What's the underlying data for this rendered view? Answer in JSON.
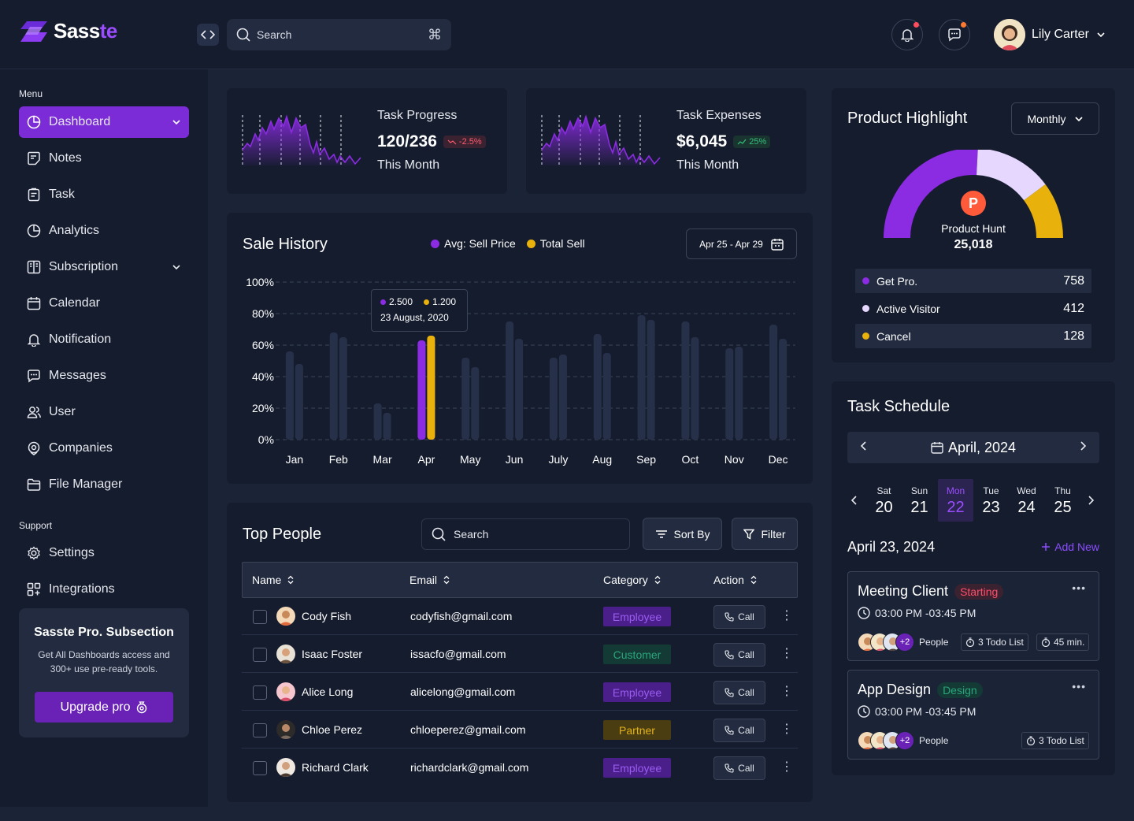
{
  "brand": {
    "name_main": "Sass",
    "name_accent": "te"
  },
  "header": {
    "search_placeholder": "Search",
    "shortcut": "⌘",
    "user_name": "Lily Carter"
  },
  "sidebar": {
    "menu_label": "Menu",
    "support_label": "Support",
    "items": [
      {
        "label": "Dashboard"
      },
      {
        "label": "Notes"
      },
      {
        "label": "Task"
      },
      {
        "label": "Analytics"
      },
      {
        "label": "Subscription"
      },
      {
        "label": "Calendar"
      },
      {
        "label": "Notification"
      },
      {
        "label": "Messages"
      },
      {
        "label": "User"
      },
      {
        "label": "Companies"
      },
      {
        "label": "File Manager"
      }
    ],
    "support_items": [
      {
        "label": "Settings"
      },
      {
        "label": "Integrations"
      }
    ],
    "promo": {
      "title": "Sasste Pro. Subsection",
      "description": "Get All Dashboards access and 300+ use pre-ready tools.",
      "button": "Upgrade pro"
    }
  },
  "stats": [
    {
      "title": "Task Progress",
      "value": "120/236",
      "change": "-2.5%",
      "period": "This Month"
    },
    {
      "title": "Task Expenses",
      "value": "$6,045",
      "change": "25%",
      "period": "This Month"
    }
  ],
  "sale_history": {
    "title": "Sale History",
    "legend": [
      "Avg: Sell Price",
      "Total Sell"
    ],
    "date_range": "Apr 25 - Apr 29",
    "tooltip": {
      "v1": "2.500",
      "v2": "1.200",
      "date": "23 August, 2020"
    }
  },
  "chart_data": {
    "type": "bar",
    "title": "Sale History",
    "categories": [
      "Jan",
      "Feb",
      "Mar",
      "Apr",
      "May",
      "Jun",
      "July",
      "Aug",
      "Sep",
      "Oct",
      "Nov",
      "Dec"
    ],
    "ylabels": [
      "100%",
      "80%",
      "60%",
      "40%",
      "20%",
      "0%"
    ],
    "ylim": [
      0,
      100
    ],
    "series": [
      {
        "name": "Avg: Sell Price",
        "values": [
          56,
          68,
          23,
          63,
          52,
          75,
          52,
          67,
          79,
          75,
          58,
          73
        ]
      },
      {
        "name": "Total Sell",
        "values": [
          48,
          65,
          17,
          66,
          46,
          64,
          54,
          55,
          76,
          65,
          59,
          64
        ]
      }
    ],
    "highlight_index": 3,
    "colors": {
      "highlight1": "#8b2be2",
      "highlight2": "#e8b10c",
      "bar": "#263048"
    }
  },
  "top_people": {
    "title": "Top People",
    "search_placeholder": "Search",
    "sort_label": "Sort By",
    "filter_label": "Filter",
    "columns": [
      "Name",
      "Email",
      "Category",
      "Action"
    ],
    "call_label": "Call",
    "rows": [
      {
        "name": "Cody Fish",
        "email": "codyfish@gmail.com",
        "category": "Employee"
      },
      {
        "name": "Isaac Foster",
        "email": "issacfo@gmail.com",
        "category": "Customer"
      },
      {
        "name": "Alice Long",
        "email": "alicelong@gmail.com",
        "category": "Employee"
      },
      {
        "name": "Chloe Perez",
        "email": "chloeperez@gmail.com",
        "category": "Partner"
      },
      {
        "name": "Richard Clark",
        "email": "richardclark@gmail.com",
        "category": "Employee"
      }
    ]
  },
  "product_highlight": {
    "title": "Product Highlight",
    "period": "Monthly",
    "product_logo": "P",
    "product_name": "Product Hunt",
    "product_value": "25,018",
    "gauge_segments": [
      {
        "name": "Get Pro.",
        "value": 758,
        "color": "#8b2be2"
      },
      {
        "name": "Active Visitor",
        "value": 412,
        "color": "#e6d7ff"
      },
      {
        "name": "Cancel",
        "value": 128,
        "color": "#e8b10c"
      }
    ],
    "stats": [
      {
        "label": "Get Pro.",
        "value": "758"
      },
      {
        "label": "Active Visitor",
        "value": "412"
      },
      {
        "label": "Cancel",
        "value": "128"
      }
    ]
  },
  "task_schedule": {
    "title": "Task Schedule",
    "month": "April, 2024",
    "days": [
      {
        "name": "Sat",
        "date": "20"
      },
      {
        "name": "Sun",
        "date": "21"
      },
      {
        "name": "Mon",
        "date": "22"
      },
      {
        "name": "Tue",
        "date": "23"
      },
      {
        "name": "Wed",
        "date": "24"
      },
      {
        "name": "Thu",
        "date": "25"
      }
    ],
    "selected_date": "April 23, 2024",
    "add_new": "Add New",
    "tasks": [
      {
        "title": "Meeting Client",
        "tag": "Starting",
        "time": "03:00 PM -03:45 PM",
        "more_people": "+2",
        "people_label": "People",
        "todo": "3 Todo List",
        "duration": "45 min."
      },
      {
        "title": "App Design",
        "tag": "Design",
        "time": "03:00 PM -03:45 PM",
        "more_people": "+2",
        "people_label": "People",
        "todo": "3 Todo List"
      }
    ]
  }
}
